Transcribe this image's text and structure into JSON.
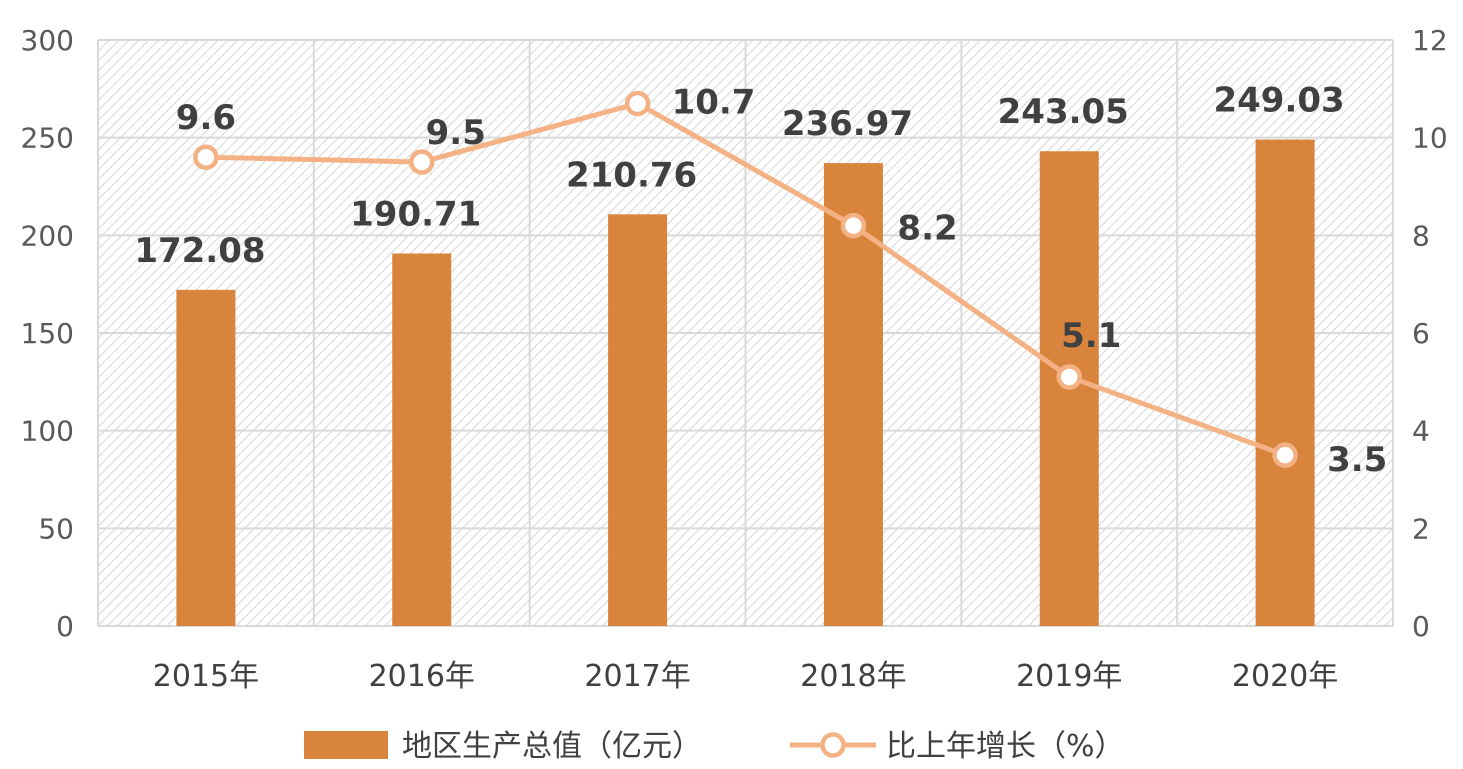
{
  "chart_data": {
    "type": "bar",
    "categories": [
      "2015年",
      "2016年",
      "2017年",
      "2018年",
      "2019年",
      "2020年"
    ],
    "series": [
      {
        "name": "地区生产总值（亿元）",
        "type": "bar",
        "axis": "left",
        "values": [
          172.08,
          190.71,
          210.76,
          236.97,
          243.05,
          249.03
        ],
        "labels": [
          "172.08",
          "190.71",
          "210.76",
          "236.97",
          "243.05",
          "249.03"
        ],
        "color": "#D9843D"
      },
      {
        "name": "比上年增长（%）",
        "type": "line",
        "axis": "right",
        "values": [
          9.6,
          9.5,
          10.7,
          8.2,
          5.1,
          3.5
        ],
        "labels": [
          "9.6",
          "9.5",
          "10.7",
          "8.2",
          "5.1",
          "3.5"
        ],
        "color": "#F4B183"
      }
    ],
    "y_left": {
      "lim": [
        0,
        300
      ],
      "ticks": [
        "0",
        "50",
        "100",
        "150",
        "200",
        "250",
        "300"
      ]
    },
    "y_right": {
      "lim": [
        0,
        12
      ],
      "ticks": [
        "0",
        "2",
        "4",
        "6",
        "8",
        "10",
        "12"
      ]
    },
    "grid": true,
    "legend": "bottom"
  }
}
